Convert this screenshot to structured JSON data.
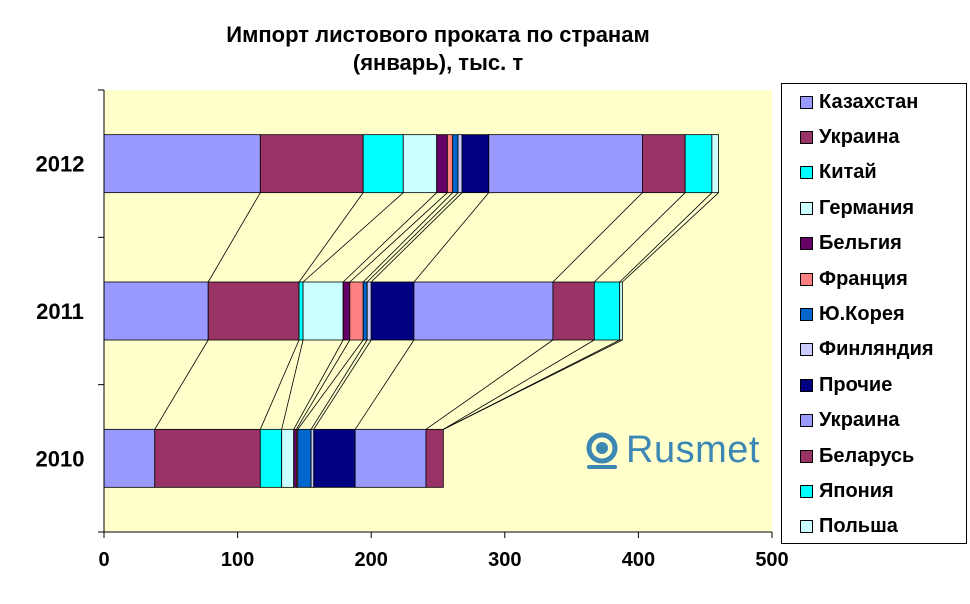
{
  "chart_data": {
    "type": "bar",
    "orientation": "horizontal",
    "stacked": true,
    "title": "Импорт листового проката по странам",
    "subtitle": "(январь), тыс. т",
    "categories": [
      "2012",
      "2011",
      "2010"
    ],
    "xlim": [
      0,
      500
    ],
    "xticks": [
      "0",
      "100",
      "200",
      "300",
      "400",
      "500"
    ],
    "grid": false,
    "legend_position": "right",
    "plot_background": "#ffffcc",
    "series_lines": true,
    "series": [
      {
        "name": "Казахстан",
        "color": "#9999ff",
        "values": [
          117,
          78,
          38
        ]
      },
      {
        "name": "Украина",
        "color": "#993366",
        "values": [
          77,
          68,
          79
        ]
      },
      {
        "name": "Китай",
        "color": "#00ffff",
        "values": [
          30,
          3,
          16
        ]
      },
      {
        "name": "Германия",
        "color": "#ccffff",
        "values": [
          25,
          30,
          9
        ]
      },
      {
        "name": "Бельгия",
        "color": "#660066",
        "values": [
          8,
          5,
          2
        ]
      },
      {
        "name": "Франция",
        "color": "#ff8080",
        "values": [
          4,
          10,
          1
        ]
      },
      {
        "name": "Ю.Корея",
        "color": "#0066cc",
        "values": [
          4,
          3,
          10
        ]
      },
      {
        "name": "Финляндия",
        "color": "#ccccff",
        "values": [
          3,
          3,
          2
        ]
      },
      {
        "name": "Прочие",
        "color": "#000080",
        "values": [
          20,
          32,
          31
        ]
      },
      {
        "name": "Украина",
        "color": "#9999ff",
        "values": [
          115,
          104,
          53
        ]
      },
      {
        "name": "Беларусь",
        "color": "#993366",
        "values": [
          32,
          31,
          13
        ]
      },
      {
        "name": "Япония",
        "color": "#00ffff",
        "values": [
          20,
          19,
          0
        ]
      },
      {
        "name": "Польша",
        "color": "#ccffff",
        "values": [
          5,
          2,
          0
        ]
      }
    ]
  },
  "watermark": {
    "text": "Rusmet",
    "color": "#3d87b5",
    "icon": "rusmet-logo-icon"
  }
}
